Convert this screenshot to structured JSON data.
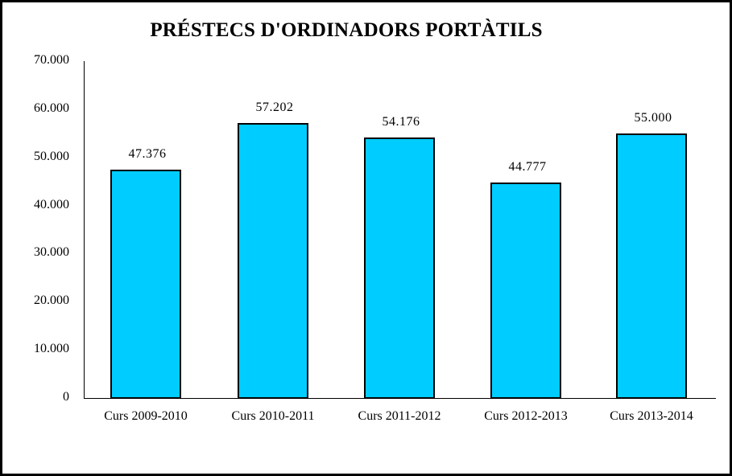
{
  "chart_data": {
    "type": "bar",
    "title": "PRÉSTECS D'ORDINADORS PORTÀTILS",
    "categories": [
      "Curs 2009-2010",
      "Curs 2010-2011",
      "Curs 2011-2012",
      "Curs 2012-2013",
      "Curs 2013-2014"
    ],
    "values": [
      47376,
      57202,
      54176,
      44777,
      55000
    ],
    "value_labels": [
      "47.376",
      "57.202",
      "54.176",
      "44.777",
      "55.000"
    ],
    "xlabel": "",
    "ylabel": "",
    "ylim": [
      0,
      70000
    ],
    "yticks": [
      "0",
      "10.000",
      "20.000",
      "30.000",
      "40.000",
      "50.000",
      "60.000",
      "70.000"
    ],
    "grid": false,
    "legend": null,
    "bar_color": "#00ccff"
  }
}
